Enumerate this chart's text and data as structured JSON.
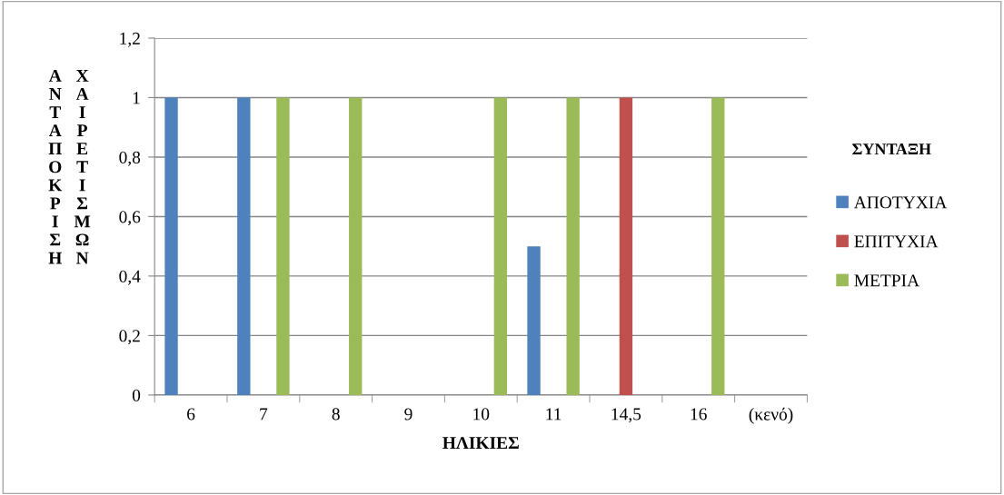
{
  "chart_data": {
    "type": "bar",
    "xlabel": "ΗΛΙΚΙΕΣ",
    "ylabel": "ΑΝΤΑΠΟΚΡΙΣΗ ΧΑΙΡΕΤΙΣΜΩΝ",
    "legend_title": "ΣΥΝΤΑΞΗ",
    "categories": [
      "6",
      "7",
      "8",
      "9",
      "10",
      "11",
      "14,5",
      "16",
      "(κενό)"
    ],
    "series": [
      {
        "name": "ΑΠΟΤΥΧΙΑ",
        "color": "#4f81bd",
        "values": [
          1,
          1,
          null,
          null,
          null,
          0.5,
          null,
          null,
          null
        ]
      },
      {
        "name": "ΕΠΙΤΥΧΙΑ",
        "color": "#c0504d",
        "values": [
          null,
          null,
          null,
          null,
          null,
          null,
          1,
          null,
          null
        ]
      },
      {
        "name": "ΜΕΤΡΙΑ",
        "color": "#9bbb59",
        "values": [
          null,
          1,
          1,
          null,
          1,
          1,
          null,
          1,
          null
        ]
      }
    ],
    "ylim": [
      0,
      1.2
    ],
    "yticks": [
      0,
      {
        "value": 0.2,
        "label": "0,2"
      },
      {
        "value": 0.4,
        "label": "0,4"
      },
      {
        "value": 0.6,
        "label": "0,6"
      },
      {
        "value": 0.8,
        "label": "0,8"
      },
      1,
      {
        "value": 1.2,
        "label": "1,2"
      }
    ],
    "grid": "y",
    "legend": "right"
  }
}
